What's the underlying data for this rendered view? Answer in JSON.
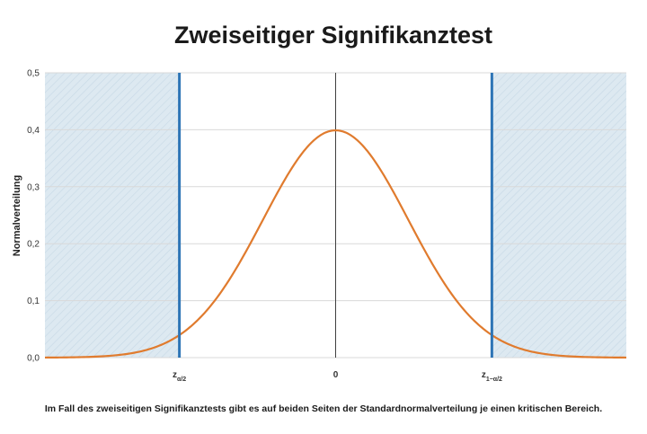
{
  "title": "Zweiseitiger Signifikanztest",
  "caption": "Im Fall des zweiseitigen Signifikanztests gibt es auf beiden Seiten der Standardnormalverteilung je einen kritischen Bereich.",
  "colors": {
    "curve": "#e07b2e",
    "critical_line": "#2e75b6",
    "critical_region": "#deeaf2",
    "grid": "#d9d9d9",
    "center_line": "#404040"
  },
  "chart_data": {
    "type": "line",
    "title": "Zweiseitiger Signifikanztest",
    "xlabel": "",
    "ylabel": "Normalverteilung",
    "xlim": [
      -4,
      4
    ],
    "ylim": [
      0,
      0.5
    ],
    "grid": true,
    "y_ticks": [
      {
        "value": 0.0,
        "label": "0,0"
      },
      {
        "value": 0.1,
        "label": "0,1"
      },
      {
        "value": 0.2,
        "label": "0,2"
      },
      {
        "value": 0.3,
        "label": "0,3"
      },
      {
        "value": 0.4,
        "label": "0,4"
      },
      {
        "value": 0.5,
        "label": "0,5"
      }
    ],
    "x_ticks": [
      {
        "value": -2.15,
        "label": "z",
        "sub": "α/2"
      },
      {
        "value": 0,
        "label": "0",
        "sub": ""
      },
      {
        "value": 2.15,
        "label": "z",
        "sub": "1−α/2"
      }
    ],
    "series": [
      {
        "function": "standard normal density",
        "x": [
          -4.0,
          -3.5,
          -3.0,
          -2.5,
          -2.15,
          -2.0,
          -1.5,
          -1.0,
          -0.5,
          0.0,
          0.5,
          1.0,
          1.5,
          2.0,
          2.15,
          2.5,
          3.0,
          3.5,
          4.0
        ],
        "y": [
          0.0001,
          0.0009,
          0.0044,
          0.0175,
          0.0396,
          0.054,
          0.1295,
          0.242,
          0.3521,
          0.3989,
          0.3521,
          0.242,
          0.1295,
          0.054,
          0.0396,
          0.0175,
          0.0044,
          0.0009,
          0.0001
        ]
      }
    ],
    "critical_values": [
      -2.15,
      2.15
    ],
    "critical_regions": [
      [
        -4,
        -2.15
      ],
      [
        2.15,
        4
      ]
    ]
  }
}
